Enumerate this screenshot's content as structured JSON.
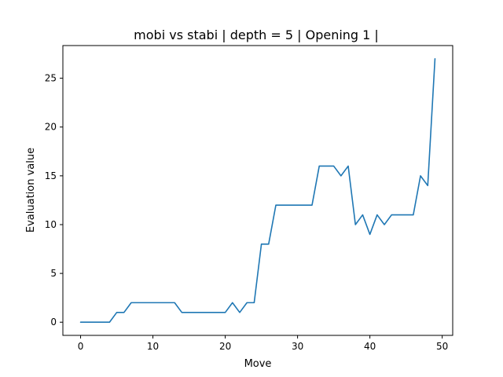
{
  "chart_data": {
    "type": "line",
    "title": "mobi vs stabi | depth = 5 | Opening 1 |",
    "xlabel": "Move",
    "ylabel": "Evaluation value",
    "xlim": [
      -2.45,
      51.45
    ],
    "ylim": [
      -1.35,
      28.35
    ],
    "xticks": [
      0,
      10,
      20,
      30,
      40,
      50
    ],
    "yticks": [
      0,
      5,
      10,
      15,
      20,
      25
    ],
    "grid": false,
    "legend": "none",
    "series": [
      {
        "color": "#1f77b4",
        "x": [
          0,
          1,
          2,
          3,
          4,
          5,
          6,
          7,
          8,
          9,
          10,
          11,
          12,
          13,
          14,
          15,
          16,
          17,
          18,
          19,
          20,
          21,
          22,
          23,
          24,
          25,
          26,
          27,
          28,
          29,
          30,
          31,
          32,
          33,
          34,
          35,
          36,
          37,
          38,
          39,
          40,
          41,
          42,
          43,
          44,
          45,
          46,
          47,
          48,
          49
        ],
        "y": [
          0,
          0,
          0,
          0,
          0,
          1,
          1,
          2,
          2,
          2,
          2,
          2,
          2,
          2,
          1,
          1,
          1,
          1,
          1,
          1,
          1,
          2,
          1,
          2,
          2,
          8,
          8,
          12,
          12,
          12,
          12,
          12,
          12,
          16,
          16,
          16,
          15,
          16,
          10,
          11,
          9,
          11,
          10,
          11,
          11,
          11,
          11,
          15,
          14,
          27
        ]
      }
    ]
  }
}
